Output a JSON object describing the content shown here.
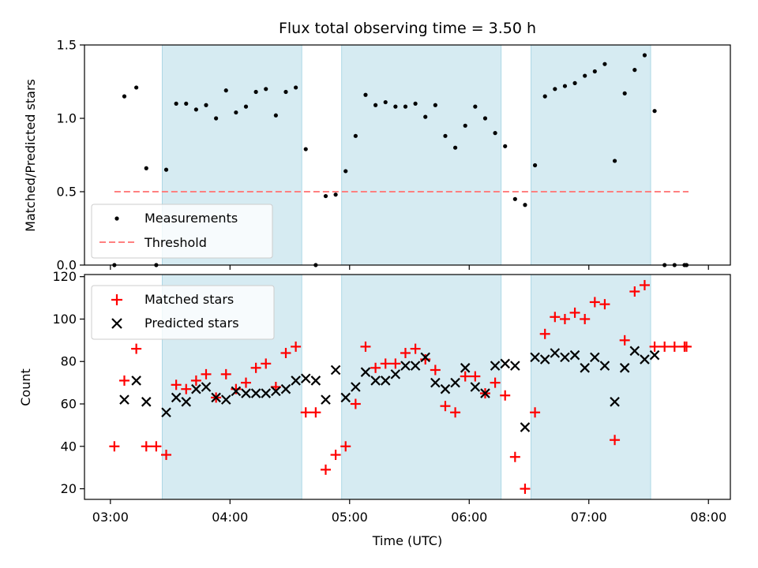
{
  "chart_data": {
    "title": "Flux total observing time = 3.50 h",
    "xlabel": "Time (UTC)",
    "x_tick_labels": [
      "03:00",
      "04:00",
      "05:00",
      "06:00",
      "07:00",
      "08:00"
    ],
    "x_range": [
      "02:47",
      "08:11"
    ],
    "shaded_intervals": [
      [
        "03:26",
        "04:36"
      ],
      [
        "04:56",
        "06:16"
      ],
      [
        "06:31",
        "07:31"
      ]
    ],
    "shade_color": "#add8e6",
    "panels": [
      {
        "type": "scatter",
        "ylabel": "Matched/Predicted stars",
        "ylim": [
          0,
          1.5
        ],
        "yticks": [
          "0.0",
          "0.5",
          "1.0",
          "1.5"
        ],
        "legend_position": "lower-left",
        "series": [
          {
            "name": "Measurements",
            "marker": "dot",
            "color": "#000000",
            "points": [
              [
                "03:02",
                0.0
              ],
              [
                "03:07",
                1.15
              ],
              [
                "03:13",
                1.21
              ],
              [
                "03:18",
                0.66
              ],
              [
                "03:23",
                0.0
              ],
              [
                "03:28",
                0.65
              ],
              [
                "03:33",
                1.1
              ],
              [
                "03:38",
                1.1
              ],
              [
                "03:43",
                1.06
              ],
              [
                "03:48",
                1.09
              ],
              [
                "03:53",
                1.0
              ],
              [
                "03:58",
                1.19
              ],
              [
                "04:03",
                1.04
              ],
              [
                "04:08",
                1.08
              ],
              [
                "04:13",
                1.18
              ],
              [
                "04:18",
                1.2
              ],
              [
                "04:23",
                1.02
              ],
              [
                "04:28",
                1.18
              ],
              [
                "04:33",
                1.21
              ],
              [
                "04:38",
                0.79
              ],
              [
                "04:43",
                0.0
              ],
              [
                "04:48",
                0.47
              ],
              [
                "04:53",
                0.48
              ],
              [
                "04:58",
                0.64
              ],
              [
                "05:03",
                0.88
              ],
              [
                "05:08",
                1.16
              ],
              [
                "05:13",
                1.09
              ],
              [
                "05:18",
                1.11
              ],
              [
                "05:23",
                1.08
              ],
              [
                "05:28",
                1.08
              ],
              [
                "05:33",
                1.1
              ],
              [
                "05:38",
                1.01
              ],
              [
                "05:43",
                1.09
              ],
              [
                "05:48",
                0.88
              ],
              [
                "05:53",
                0.8
              ],
              [
                "05:58",
                0.95
              ],
              [
                "06:03",
                1.08
              ],
              [
                "06:08",
                1.0
              ],
              [
                "06:13",
                0.9
              ],
              [
                "06:18",
                0.81
              ],
              [
                "06:23",
                0.45
              ],
              [
                "06:28",
                0.41
              ],
              [
                "06:33",
                0.68
              ],
              [
                "06:38",
                1.15
              ],
              [
                "06:43",
                1.2
              ],
              [
                "06:48",
                1.22
              ],
              [
                "06:53",
                1.24
              ],
              [
                "06:58",
                1.29
              ],
              [
                "07:03",
                1.32
              ],
              [
                "07:08",
                1.37
              ],
              [
                "07:13",
                0.71
              ],
              [
                "07:18",
                1.17
              ],
              [
                "07:23",
                1.33
              ],
              [
                "07:28",
                1.43
              ],
              [
                "07:33",
                1.05
              ],
              [
                "07:38",
                0.0
              ],
              [
                "07:43",
                0.0
              ],
              [
                "07:48",
                0.0
              ],
              [
                "07:49",
                0.0
              ]
            ]
          },
          {
            "name": "Threshold",
            "marker": "dashed-line",
            "color": "#ff8080",
            "points": [
              [
                "03:02",
                0.5
              ],
              [
                "07:50",
                0.5
              ]
            ]
          }
        ]
      },
      {
        "type": "scatter",
        "ylabel": "Count",
        "ylim": [
          15,
          121
        ],
        "yticks": [
          "20",
          "40",
          "60",
          "80",
          "100",
          "120"
        ],
        "legend_position": "upper-left",
        "series": [
          {
            "name": "Matched stars",
            "marker": "plus",
            "color": "#ff0000",
            "points": [
              [
                "03:02",
                40
              ],
              [
                "03:07",
                71
              ],
              [
                "03:13",
                86
              ],
              [
                "03:18",
                40
              ],
              [
                "03:23",
                40
              ],
              [
                "03:28",
                36
              ],
              [
                "03:33",
                69
              ],
              [
                "03:38",
                67
              ],
              [
                "03:43",
                71
              ],
              [
                "03:48",
                74
              ],
              [
                "03:53",
                63
              ],
              [
                "03:58",
                74
              ],
              [
                "04:03",
                67
              ],
              [
                "04:08",
                70
              ],
              [
                "04:13",
                77
              ],
              [
                "04:18",
                79
              ],
              [
                "04:23",
                68
              ],
              [
                "04:28",
                84
              ],
              [
                "04:33",
                87
              ],
              [
                "04:38",
                56
              ],
              [
                "04:43",
                56
              ],
              [
                "04:48",
                29
              ],
              [
                "04:53",
                36
              ],
              [
                "04:58",
                40
              ],
              [
                "05:03",
                60
              ],
              [
                "05:08",
                87
              ],
              [
                "05:13",
                77
              ],
              [
                "05:18",
                79
              ],
              [
                "05:23",
                79
              ],
              [
                "05:28",
                84
              ],
              [
                "05:33",
                86
              ],
              [
                "05:38",
                81
              ],
              [
                "05:43",
                76
              ],
              [
                "05:48",
                59
              ],
              [
                "05:53",
                56
              ],
              [
                "05:58",
                73
              ],
              [
                "06:03",
                73
              ],
              [
                "06:08",
                65
              ],
              [
                "06:13",
                70
              ],
              [
                "06:18",
                64
              ],
              [
                "06:23",
                35
              ],
              [
                "06:28",
                20
              ],
              [
                "06:33",
                56
              ],
              [
                "06:38",
                93
              ],
              [
                "06:43",
                101
              ],
              [
                "06:48",
                100
              ],
              [
                "06:53",
                103
              ],
              [
                "06:58",
                100
              ],
              [
                "07:03",
                108
              ],
              [
                "07:08",
                107
              ],
              [
                "07:13",
                43
              ],
              [
                "07:18",
                90
              ],
              [
                "07:23",
                113
              ],
              [
                "07:28",
                116
              ],
              [
                "07:33",
                87
              ],
              [
                "07:38",
                87
              ],
              [
                "07:43",
                87
              ],
              [
                "07:48",
                87
              ],
              [
                "07:49",
                87
              ]
            ]
          },
          {
            "name": "Predicted stars",
            "marker": "x",
            "color": "#000000",
            "points": [
              [
                "03:07",
                62
              ],
              [
                "03:13",
                71
              ],
              [
                "03:18",
                61
              ],
              [
                "03:28",
                56
              ],
              [
                "03:33",
                63
              ],
              [
                "03:38",
                61
              ],
              [
                "03:43",
                67
              ],
              [
                "03:48",
                68
              ],
              [
                "03:53",
                63
              ],
              [
                "03:58",
                62
              ],
              [
                "04:03",
                66
              ],
              [
                "04:08",
                65
              ],
              [
                "04:13",
                65
              ],
              [
                "04:18",
                65
              ],
              [
                "04:23",
                66
              ],
              [
                "04:28",
                67
              ],
              [
                "04:33",
                71
              ],
              [
                "04:38",
                72
              ],
              [
                "04:43",
                71
              ],
              [
                "04:48",
                62
              ],
              [
                "04:53",
                76
              ],
              [
                "04:58",
                63
              ],
              [
                "05:03",
                68
              ],
              [
                "05:08",
                75
              ],
              [
                "05:13",
                71
              ],
              [
                "05:18",
                71
              ],
              [
                "05:23",
                74
              ],
              [
                "05:28",
                78
              ],
              [
                "05:33",
                78
              ],
              [
                "05:38",
                82
              ],
              [
                "05:43",
                70
              ],
              [
                "05:48",
                67
              ],
              [
                "05:53",
                70
              ],
              [
                "05:58",
                77
              ],
              [
                "06:03",
                68
              ],
              [
                "06:08",
                65
              ],
              [
                "06:13",
                78
              ],
              [
                "06:18",
                79
              ],
              [
                "06:23",
                78
              ],
              [
                "06:28",
                49
              ],
              [
                "06:33",
                82
              ],
              [
                "06:38",
                81
              ],
              [
                "06:43",
                84
              ],
              [
                "06:48",
                82
              ],
              [
                "06:53",
                83
              ],
              [
                "06:58",
                77
              ],
              [
                "07:03",
                82
              ],
              [
                "07:08",
                78
              ],
              [
                "07:13",
                61
              ],
              [
                "07:18",
                77
              ],
              [
                "07:23",
                85
              ],
              [
                "07:28",
                81
              ],
              [
                "07:33",
                83
              ]
            ]
          }
        ]
      }
    ]
  }
}
